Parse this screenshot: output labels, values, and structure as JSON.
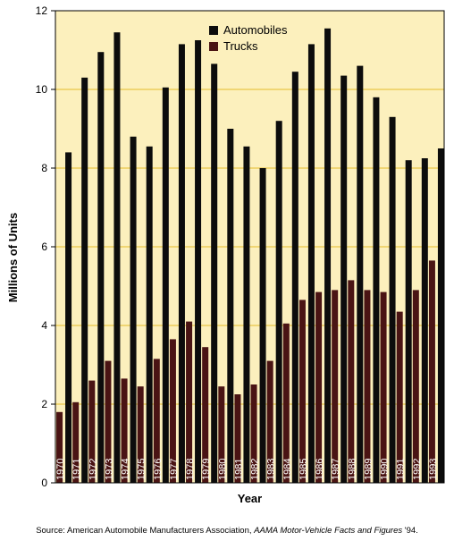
{
  "chart_data": {
    "type": "bar",
    "xlabel": "Year",
    "ylabel": "Millions of Units",
    "ylim": [
      0,
      12
    ],
    "yticks": [
      0,
      2,
      4,
      6,
      8,
      10,
      12
    ],
    "grid": true,
    "legend_position": "top-center",
    "colors": {
      "background": "#fcf0bd",
      "gridline": "#e8c74a",
      "automobiles": "#0c0c0c",
      "trucks": "#4a1414"
    },
    "categories": [
      "1970",
      "1971",
      "1972",
      "1973",
      "1974",
      "1975",
      "1976",
      "1977",
      "1978",
      "1979",
      "1980",
      "1981",
      "1982",
      "1983",
      "1984",
      "1985",
      "1986",
      "1987",
      "1988",
      "1989",
      "1990",
      "1991",
      "1992",
      "1993"
    ],
    "series": [
      {
        "name": "Automobiles",
        "values": [
          8.4,
          10.3,
          10.95,
          11.45,
          8.8,
          8.55,
          10.05,
          11.15,
          11.25,
          10.65,
          9.0,
          8.55,
          8.0,
          9.2,
          10.45,
          11.15,
          11.55,
          10.35,
          10.6,
          9.8,
          9.3,
          8.2,
          8.25,
          8.5
        ]
      },
      {
        "name": "Trucks",
        "values": [
          1.8,
          2.05,
          2.6,
          3.1,
          2.65,
          2.45,
          3.15,
          3.65,
          4.1,
          3.45,
          2.45,
          2.25,
          2.5,
          3.1,
          4.05,
          4.65,
          4.85,
          4.9,
          5.15,
          4.9,
          4.85,
          4.35,
          4.9,
          5.65
        ]
      }
    ]
  },
  "source": {
    "prefix": "Source: American Automobile Manufacturers Association, ",
    "title": "AAMA Motor-Vehicle Facts and Figures",
    "suffix": " '94."
  }
}
